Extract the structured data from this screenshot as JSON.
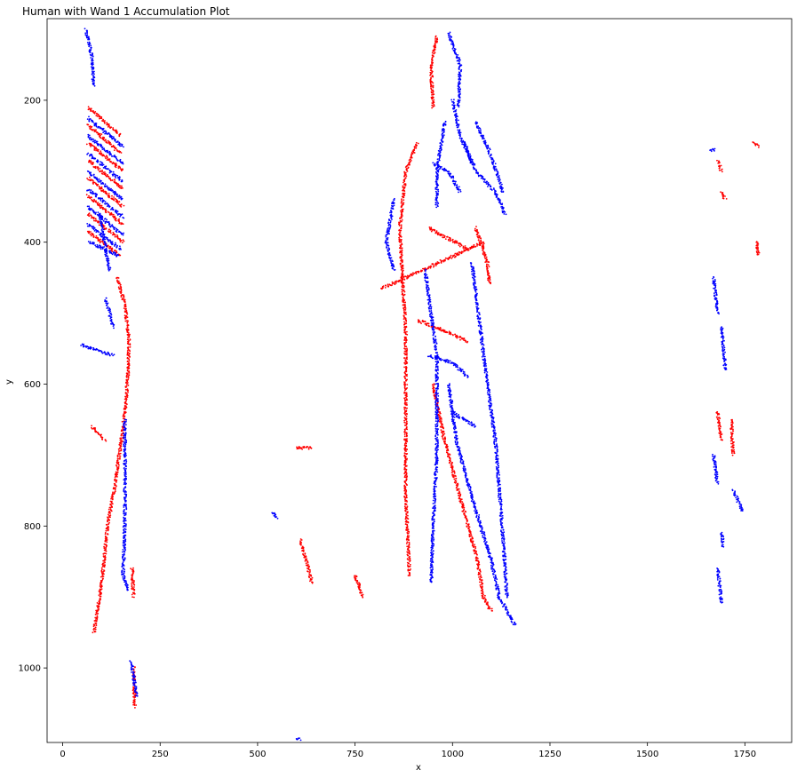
{
  "chart_data": {
    "type": "scatter",
    "title": "Human with Wand 1 Accumulation Plot",
    "xlabel": "x",
    "ylabel": "y",
    "xlim": [
      -40,
      1870
    ],
    "ylim": [
      1105,
      85
    ],
    "y_inverted": true,
    "grid": false,
    "x_ticks": [
      0,
      250,
      500,
      750,
      1000,
      1250,
      1500,
      1750
    ],
    "y_ticks": [
      200,
      400,
      600,
      800,
      1000
    ],
    "x_tick_labels": [
      "0",
      "250",
      "500",
      "750",
      "1000",
      "1250",
      "1500",
      "1750"
    ],
    "y_tick_labels": [
      "200",
      "400",
      "600",
      "800",
      "1000"
    ],
    "series": [
      {
        "color": "#ff0000",
        "strokes": [
          [
            [
              65,
              210
            ],
            [
              150,
              250
            ]
          ],
          [
            [
              65,
              235
            ],
            [
              150,
              275
            ]
          ],
          [
            [
              65,
              260
            ],
            [
              155,
              300
            ]
          ],
          [
            [
              65,
              285
            ],
            [
              155,
              325
            ]
          ],
          [
            [
              65,
              310
            ],
            [
              155,
              350
            ]
          ],
          [
            [
              65,
              335
            ],
            [
              155,
              375
            ]
          ],
          [
            [
              65,
              360
            ],
            [
              155,
              400
            ]
          ],
          [
            [
              65,
              385
            ],
            [
              150,
              420
            ]
          ],
          [
            [
              140,
              450
            ],
            [
              160,
              490
            ],
            [
              170,
              540
            ],
            [
              168,
              580
            ],
            [
              160,
              640
            ],
            [
              150,
              680
            ],
            [
              135,
              740
            ],
            [
              115,
              800
            ],
            [
              100,
              880
            ],
            [
              80,
              950
            ]
          ],
          [
            [
              75,
              660
            ],
            [
              110,
              680
            ]
          ],
          [
            [
              178,
              860
            ],
            [
              182,
              900
            ]
          ],
          [
            [
              182,
              1000
            ],
            [
              185,
              1055
            ]
          ],
          [
            [
              960,
              110
            ],
            [
              945,
              150
            ],
            [
              950,
              210
            ]
          ],
          [
            [
              910,
              260
            ],
            [
              880,
              300
            ],
            [
              865,
              380
            ],
            [
              870,
              440
            ],
            [
              880,
              520
            ],
            [
              880,
              600
            ],
            [
              880,
              680
            ],
            [
              880,
              760
            ],
            [
              890,
              870
            ]
          ],
          [
            [
              950,
              600
            ],
            [
              980,
              680
            ],
            [
              1020,
              760
            ],
            [
              1060,
              840
            ],
            [
              1080,
              900
            ],
            [
              1100,
              920
            ]
          ],
          [
            [
              820,
              465
            ],
            [
              900,
              445
            ],
            [
              1000,
              420
            ],
            [
              1080,
              400
            ]
          ],
          [
            [
              1060,
              380
            ],
            [
              1090,
              430
            ],
            [
              1095,
              460
            ]
          ],
          [
            [
              940,
              380
            ],
            [
              990,
              395
            ],
            [
              1040,
              410
            ]
          ],
          [
            [
              910,
              510
            ],
            [
              980,
              525
            ],
            [
              1040,
              540
            ]
          ],
          [
            [
              600,
              690
            ],
            [
              640,
              690
            ]
          ],
          [
            [
              610,
              820
            ],
            [
              640,
              880
            ]
          ],
          [
            [
              750,
              870
            ],
            [
              770,
              900
            ]
          ],
          [
            [
              1680,
              640
            ],
            [
              1690,
              680
            ]
          ],
          [
            [
              1715,
              650
            ],
            [
              1720,
              700
            ]
          ],
          [
            [
              1770,
              260
            ],
            [
              1785,
              265
            ]
          ],
          [
            [
              1680,
              285
            ],
            [
              1690,
              300
            ]
          ],
          [
            [
              1690,
              330
            ],
            [
              1700,
              340
            ]
          ],
          [
            [
              1780,
              400
            ],
            [
              1785,
              420
            ]
          ]
        ]
      },
      {
        "color": "#0000ff",
        "strokes": [
          [
            [
              60,
              100
            ],
            [
              75,
              140
            ],
            [
              80,
              180
            ]
          ],
          [
            [
              65,
              225
            ],
            [
              155,
              265
            ]
          ],
          [
            [
              65,
              250
            ],
            [
              155,
              290
            ]
          ],
          [
            [
              65,
              275
            ],
            [
              155,
              315
            ]
          ],
          [
            [
              65,
              300
            ],
            [
              155,
              340
            ]
          ],
          [
            [
              65,
              325
            ],
            [
              155,
              365
            ]
          ],
          [
            [
              65,
              350
            ],
            [
              155,
              390
            ]
          ],
          [
            [
              65,
              375
            ],
            [
              150,
              410
            ]
          ],
          [
            [
              70,
              400
            ],
            [
              145,
              420
            ]
          ],
          [
            [
              95,
              360
            ],
            [
              120,
              440
            ]
          ],
          [
            [
              110,
              480
            ],
            [
              130,
              520
            ]
          ],
          [
            [
              50,
              545
            ],
            [
              130,
              560
            ]
          ],
          [
            [
              160,
              650
            ],
            [
              160,
              780
            ],
            [
              155,
              870
            ],
            [
              170,
              890
            ]
          ],
          [
            [
              175,
              990
            ],
            [
              190,
              1040
            ]
          ],
          [
            [
              990,
              105
            ],
            [
              1020,
              150
            ],
            [
              1015,
              210
            ]
          ],
          [
            [
              1000,
              200
            ],
            [
              1020,
              250
            ],
            [
              1060,
              300
            ],
            [
              1110,
              330
            ],
            [
              1135,
              360
            ]
          ],
          [
            [
              1060,
              230
            ],
            [
              1100,
              280
            ],
            [
              1130,
              330
            ]
          ],
          [
            [
              980,
              230
            ],
            [
              960,
              300
            ],
            [
              960,
              350
            ]
          ],
          [
            [
              850,
              340
            ],
            [
              830,
              400
            ],
            [
              850,
              440
            ]
          ],
          [
            [
              990,
              600
            ],
            [
              1010,
              680
            ],
            [
              1050,
              760
            ],
            [
              1100,
              850
            ],
            [
              1120,
              900
            ],
            [
              1160,
              940
            ]
          ],
          [
            [
              1050,
              430
            ],
            [
              1080,
              560
            ],
            [
              1110,
              680
            ],
            [
              1130,
              820
            ],
            [
              1140,
              900
            ]
          ],
          [
            [
              930,
              440
            ],
            [
              960,
              560
            ],
            [
              960,
              700
            ],
            [
              950,
              800
            ],
            [
              945,
              880
            ]
          ],
          [
            [
              1030,
              260
            ],
            [
              1050,
              290
            ]
          ],
          [
            [
              950,
              290
            ],
            [
              990,
              300
            ],
            [
              1020,
              330
            ]
          ],
          [
            [
              940,
              560
            ],
            [
              1000,
              570
            ],
            [
              1040,
              590
            ]
          ],
          [
            [
              1000,
              640
            ],
            [
              1060,
              660
            ]
          ],
          [
            [
              600,
              1100
            ],
            [
              610,
              1100
            ]
          ],
          [
            [
              1670,
              450
            ],
            [
              1680,
              500
            ]
          ],
          [
            [
              1690,
              520
            ],
            [
              1700,
              580
            ]
          ],
          [
            [
              1670,
              700
            ],
            [
              1680,
              740
            ]
          ],
          [
            [
              1720,
              750
            ],
            [
              1745,
              780
            ]
          ],
          [
            [
              1690,
              810
            ],
            [
              1695,
              830
            ]
          ],
          [
            [
              1680,
              860
            ],
            [
              1690,
              910
            ]
          ],
          [
            [
              1660,
              270
            ],
            [
              1675,
              270
            ]
          ],
          [
            [
              540,
              780
            ],
            [
              550,
              790
            ]
          ]
        ]
      }
    ]
  }
}
